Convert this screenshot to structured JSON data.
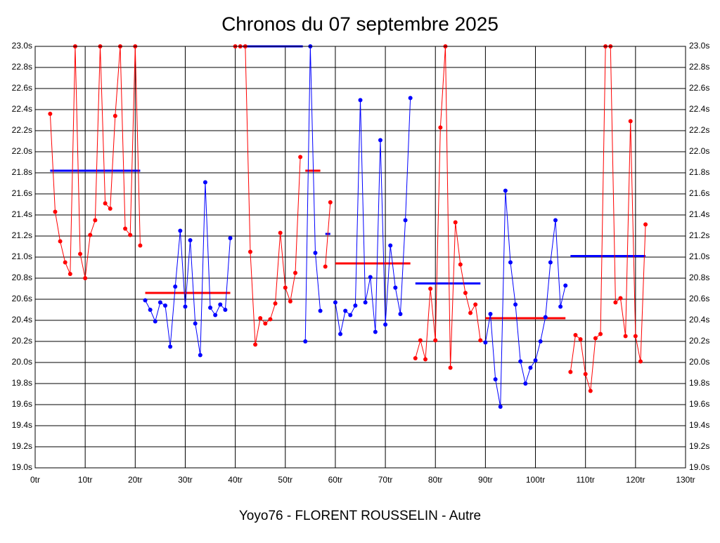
{
  "chart_data": {
    "type": "line",
    "title": "Chronos du 07 septembre 2025",
    "xlabel": "Yoyo76 - FLORENT ROUSSELIN - Autre",
    "grid": true,
    "xlim": [
      0,
      130
    ],
    "ylim": [
      19.0,
      23.0
    ],
    "xticks": [
      {
        "value": 0,
        "label": "0tr"
      },
      {
        "value": 10,
        "label": "10tr"
      },
      {
        "value": 20,
        "label": "20tr"
      },
      {
        "value": 30,
        "label": "30tr"
      },
      {
        "value": 40,
        "label": "40tr"
      },
      {
        "value": 50,
        "label": "50tr"
      },
      {
        "value": 60,
        "label": "60tr"
      },
      {
        "value": 70,
        "label": "70tr"
      },
      {
        "value": 80,
        "label": "80tr"
      },
      {
        "value": 90,
        "label": "90tr"
      },
      {
        "value": 100,
        "label": "100tr"
      },
      {
        "value": 110,
        "label": "110tr"
      },
      {
        "value": 120,
        "label": "120tr"
      },
      {
        "value": 130,
        "label": "130tr"
      }
    ],
    "yticks": [
      {
        "value": 19.0,
        "label": "19.0s"
      },
      {
        "value": 19.2,
        "label": "19.2s"
      },
      {
        "value": 19.4,
        "label": "19.4s"
      },
      {
        "value": 19.6,
        "label": "19.6s"
      },
      {
        "value": 19.8,
        "label": "19.8s"
      },
      {
        "value": 20.0,
        "label": "20.0s"
      },
      {
        "value": 20.2,
        "label": "20.2s"
      },
      {
        "value": 20.4,
        "label": "20.4s"
      },
      {
        "value": 20.6,
        "label": "20.6s"
      },
      {
        "value": 20.8,
        "label": "20.8s"
      },
      {
        "value": 21.0,
        "label": "21.0s"
      },
      {
        "value": 21.2,
        "label": "21.2s"
      },
      {
        "value": 21.4,
        "label": "21.4s"
      },
      {
        "value": 21.6,
        "label": "21.6s"
      },
      {
        "value": 21.8,
        "label": "21.8s"
      },
      {
        "value": 22.0,
        "label": "22.0s"
      },
      {
        "value": 22.2,
        "label": "22.2s"
      },
      {
        "value": 22.4,
        "label": "22.4s"
      },
      {
        "value": 22.6,
        "label": "22.6s"
      },
      {
        "value": 22.8,
        "label": "22.8s"
      },
      {
        "value": 23.0,
        "label": "23.0s"
      }
    ],
    "series": [
      {
        "color": "#ff0000",
        "x": [
          3,
          4,
          5,
          6,
          7,
          8,
          9,
          10,
          11,
          12,
          13,
          14,
          15,
          16,
          17,
          18,
          19,
          20,
          21
        ],
        "values": [
          22.36,
          21.43,
          21.15,
          20.95,
          20.84,
          23.0,
          21.03,
          20.8,
          21.21,
          21.35,
          23.0,
          21.51,
          21.46,
          22.34,
          23.0,
          21.27,
          21.21,
          23.0,
          21.11
        ]
      },
      {
        "color": "#0000ff",
        "x": [
          22,
          23,
          24,
          25,
          26,
          27,
          28,
          29,
          30,
          31,
          32,
          33,
          34,
          35,
          36,
          37,
          38,
          39
        ],
        "values": [
          20.59,
          20.5,
          20.39,
          20.57,
          20.54,
          20.15,
          20.72,
          21.25,
          20.53,
          21.16,
          20.37,
          20.07,
          21.71,
          20.52,
          20.45,
          20.55,
          20.5,
          21.18
        ]
      },
      {
        "color": "#ff0000",
        "x": [
          40,
          41,
          42,
          43,
          44,
          45,
          46,
          47,
          48,
          49,
          50,
          51,
          52,
          53
        ],
        "values": [
          23.0,
          23.0,
          23.0,
          21.05,
          20.17,
          20.42,
          20.37,
          20.41,
          20.56,
          21.23,
          20.71,
          20.58,
          20.85,
          21.95
        ]
      },
      {
        "color": "#0000ff",
        "x": [
          54,
          55,
          56,
          57
        ],
        "values": [
          20.2,
          23.0,
          21.04,
          20.49
        ]
      },
      {
        "color": "#ff0000",
        "x": [
          58,
          59
        ],
        "values": [
          20.91,
          21.52
        ]
      },
      {
        "color": "#0000ff",
        "x": [
          60,
          61,
          62,
          63,
          64,
          65,
          66,
          67,
          68,
          69,
          70,
          71,
          72,
          73,
          74,
          75
        ],
        "values": [
          20.57,
          20.27,
          20.49,
          20.45,
          20.54,
          22.49,
          20.57,
          20.81,
          20.29,
          22.11,
          20.36,
          21.11,
          20.71,
          20.46,
          21.35,
          22.51
        ]
      },
      {
        "color": "#ff0000",
        "x": [
          76,
          77,
          78,
          79,
          80,
          81,
          82,
          83,
          84,
          85,
          86,
          87,
          88,
          89
        ],
        "values": [
          20.04,
          20.21,
          20.03,
          20.7,
          20.21,
          22.23,
          23.0,
          19.95,
          21.33,
          20.93,
          20.66,
          20.47,
          20.55,
          20.21
        ]
      },
      {
        "color": "#0000ff",
        "x": [
          90,
          91,
          92,
          93,
          94,
          95,
          96,
          97,
          98,
          99,
          100,
          101,
          102,
          103,
          104,
          105,
          106
        ],
        "values": [
          20.19,
          20.46,
          19.84,
          19.58,
          21.63,
          20.95,
          20.55,
          20.01,
          19.8,
          19.95,
          20.02,
          20.2,
          20.43,
          20.95,
          21.35,
          20.53,
          20.73
        ]
      },
      {
        "color": "#ff0000",
        "x": [
          107,
          108,
          109,
          110,
          111,
          112,
          113,
          114,
          115,
          116,
          117,
          118,
          119,
          120,
          121,
          122
        ],
        "values": [
          19.91,
          20.26,
          20.22,
          19.89,
          19.73,
          20.23,
          20.27,
          23.0,
          23.0,
          20.57,
          20.61,
          20.25,
          22.29,
          20.25,
          20.01,
          21.31
        ]
      }
    ],
    "averages": [
      {
        "color": "#0000ff",
        "x": [
          3,
          21
        ],
        "value": 21.82
      },
      {
        "color": "#ff0000",
        "x": [
          22,
          39
        ],
        "value": 20.66
      },
      {
        "color": "#0000ff",
        "x": [
          41.5,
          53.5
        ],
        "value": 23.0
      },
      {
        "color": "#ff0000",
        "x": [
          54,
          57
        ],
        "value": 21.82
      },
      {
        "color": "#0000ff",
        "x": [
          58,
          59
        ],
        "value": 21.22
      },
      {
        "color": "#ff0000",
        "x": [
          60,
          75
        ],
        "value": 20.94
      },
      {
        "color": "#0000ff",
        "x": [
          76,
          89
        ],
        "value": 20.75
      },
      {
        "color": "#ff0000",
        "x": [
          90,
          106
        ],
        "value": 20.42
      },
      {
        "color": "#0000ff",
        "x": [
          107,
          122
        ],
        "value": 21.01
      }
    ]
  }
}
